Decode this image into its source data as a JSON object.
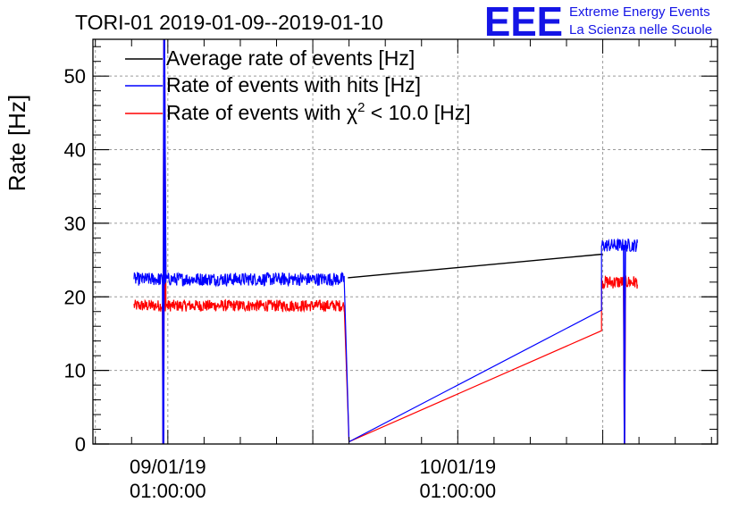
{
  "chart_data": {
    "type": "line",
    "title": "TORI-01 2019-01-09--2019-01-10",
    "ylabel": "Rate [Hz]",
    "xlabel": "",
    "ylim": [
      0,
      55
    ],
    "y_ticks": [
      0,
      10,
      20,
      30,
      40,
      50
    ],
    "x_ticks": [
      {
        "date": "09/01/19",
        "time": "01:00:00",
        "hours": 0
      },
      {
        "date": "10/01/19",
        "time": "01:00:00",
        "hours": 24
      }
    ],
    "xlim_hours": [
      -6.2,
      45.5
    ],
    "grid": true,
    "legend_position": "top-left",
    "logo": {
      "letters": "EEE",
      "line1": "Extreme Energy Events",
      "line2": "La Scienza nelle Scuole",
      "color": "#1414e6"
    },
    "series": [
      {
        "name": "Average rate of events [Hz]",
        "color": "#000000",
        "points": [
          [
            14.9,
            22.6
          ],
          [
            36.0,
            25.8
          ]
        ]
      },
      {
        "name": "Rate of events with hits [Hz]",
        "color": "#0000ff",
        "segments": [
          {
            "from": -2.8,
            "to": 14.6,
            "mean": 22.4,
            "noise": 0.9
          },
          {
            "from": 35.9,
            "to": 38.9,
            "mean": 27.0,
            "noise": 0.9
          }
        ],
        "connectors": [
          [
            14.6,
            22.4
          ],
          [
            15.0,
            0.3
          ],
          [
            35.9,
            18.2
          ]
        ]
      },
      {
        "name": "Rate of events with χ² < 10.0 [Hz]",
        "name_parts": [
          "Rate of events with χ",
          "2",
          " < 10.0 [Hz]"
        ],
        "color": "#ff0000",
        "segments": [
          {
            "from": -2.8,
            "to": 14.6,
            "mean": 18.8,
            "noise": 0.8
          },
          {
            "from": 35.9,
            "to": 38.9,
            "mean": 22.0,
            "noise": 0.9
          }
        ],
        "connectors": [
          [
            14.6,
            18.8
          ],
          [
            15.0,
            0.3
          ],
          [
            35.9,
            15.4
          ]
        ]
      }
    ],
    "spikes_hours": [
      -0.3,
      37.8
    ]
  }
}
